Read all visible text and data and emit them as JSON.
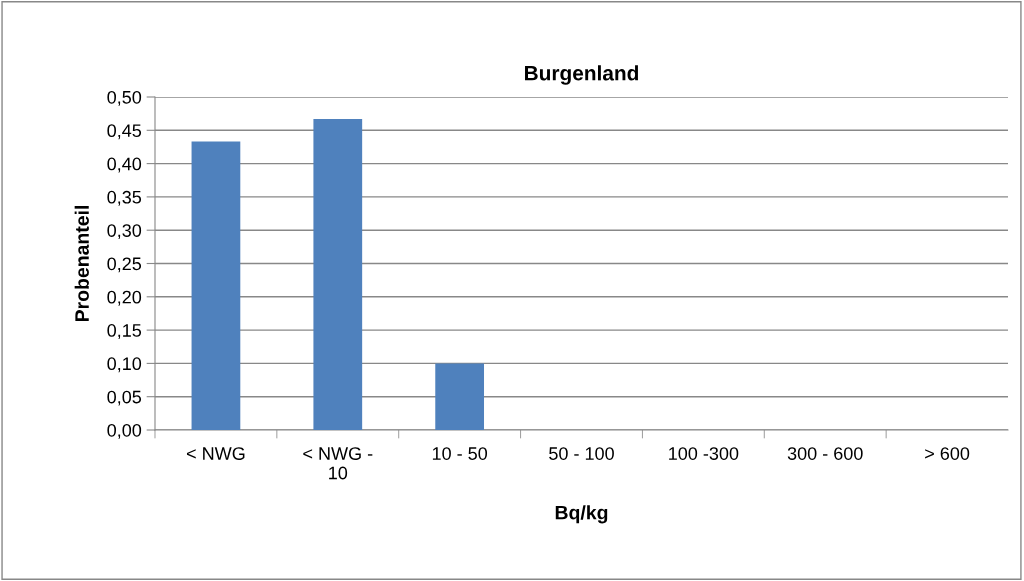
{
  "chart_data": {
    "type": "bar",
    "title": "Burgenland",
    "xlabel": "Bq/kg",
    "ylabel": "Probenanteil",
    "categories": [
      "< NWG",
      "< NWG - 10",
      "10 - 50",
      "50 - 100",
      "100 -300",
      "300 - 600",
      "> 600"
    ],
    "values": [
      0.433,
      0.467,
      0.1,
      0,
      0,
      0,
      0
    ],
    "color": "#4f81bd",
    "ylim": [
      0,
      0.5
    ],
    "yticks": [
      {
        "value": 0,
        "label": "0,00"
      },
      {
        "value": 0.05,
        "label": "0,05"
      },
      {
        "value": 0.1,
        "label": "0,10"
      },
      {
        "value": 0.15,
        "label": "0,15"
      },
      {
        "value": 0.2,
        "label": "0,20"
      },
      {
        "value": 0.25,
        "label": "0,25"
      },
      {
        "value": 0.3,
        "label": "0,30"
      },
      {
        "value": 0.35,
        "label": "0,35"
      },
      {
        "value": 0.4,
        "label": "0,40"
      },
      {
        "value": 0.45,
        "label": "0,45"
      },
      {
        "value": 0.5,
        "label": "0,50"
      }
    ],
    "grid": "y"
  }
}
